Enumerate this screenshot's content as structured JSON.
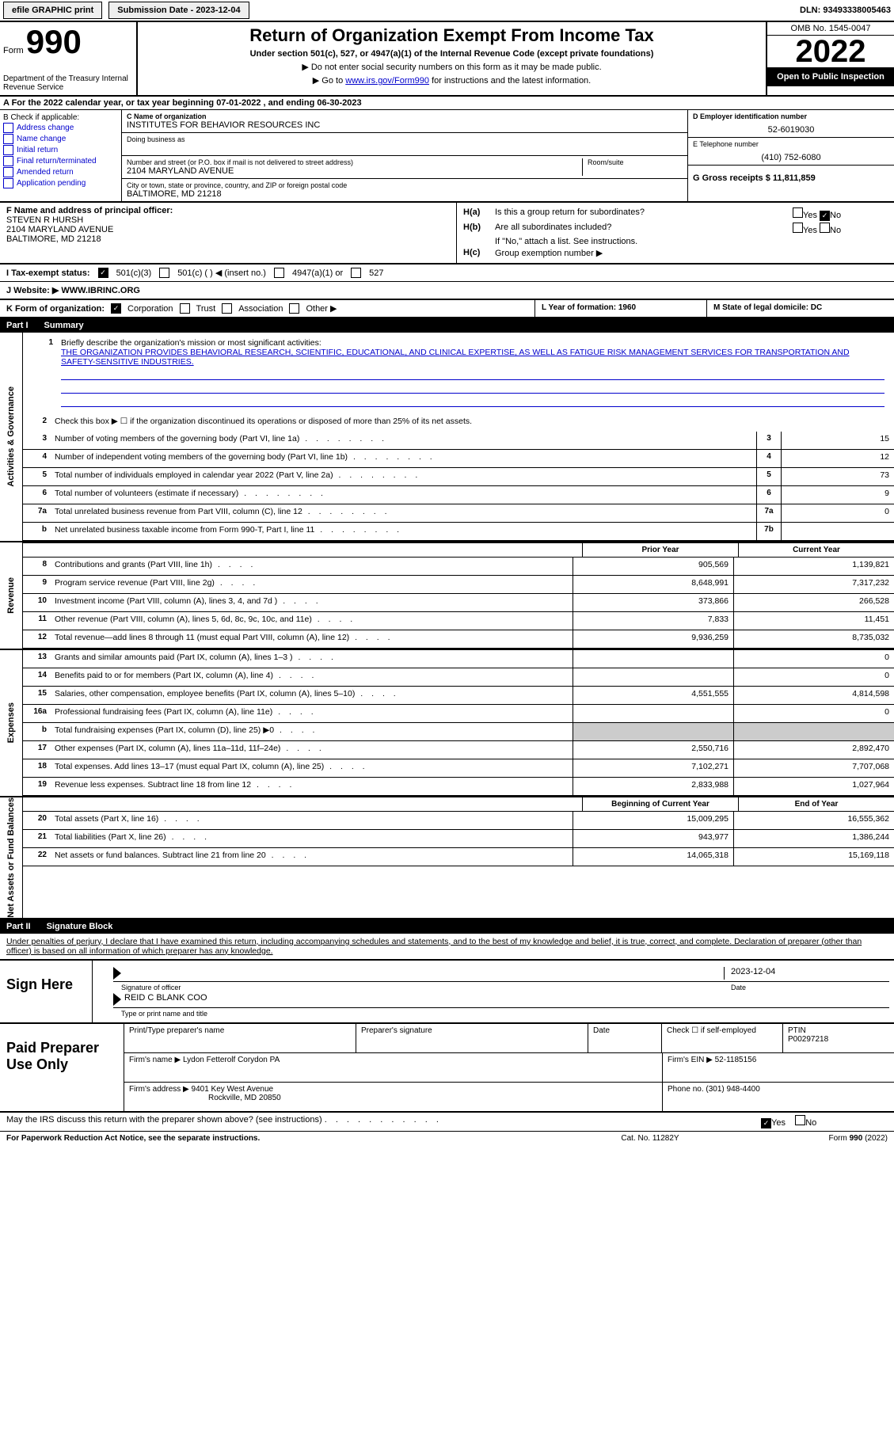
{
  "top_bar": {
    "efile_label": "efile GRAPHIC print",
    "submission_date_label": "Submission Date - 2023-12-04",
    "dln_label": "DLN: 93493338005463"
  },
  "header": {
    "form_label": "Form",
    "form_number": "990",
    "dept": "Department of the Treasury\nInternal Revenue Service",
    "title": "Return of Organization Exempt From Income Tax",
    "subtitle": "Under section 501(c), 527, or 4947(a)(1) of the Internal Revenue Code (except private foundations)",
    "note1": "▶ Do not enter social security numbers on this form as it may be made public.",
    "note2_pre": "▶ Go to ",
    "note2_link": "www.irs.gov/Form990",
    "note2_post": " for instructions and the latest information.",
    "omb": "OMB No. 1545-0047",
    "year": "2022",
    "open_public": "Open to Public Inspection"
  },
  "section_a": {
    "text": "A For the 2022 calendar year, or tax year beginning 07-01-2022   , and ending 06-30-2023"
  },
  "col_b": {
    "header": "B Check if applicable:",
    "items": [
      "Address change",
      "Name change",
      "Initial return",
      "Final return/terminated",
      "Amended return",
      "Application pending"
    ]
  },
  "col_c": {
    "name_label": "C Name of organization",
    "name": "INSTITUTES FOR BEHAVIOR RESOURCES INC",
    "dba_label": "Doing business as",
    "addr_label": "Number and street (or P.O. box if mail is not delivered to street address)",
    "room_label": "Room/suite",
    "addr": "2104 MARYLAND AVENUE",
    "city_label": "City or town, state or province, country, and ZIP or foreign postal code",
    "city": "BALTIMORE, MD  21218"
  },
  "col_d": {
    "d_label": "D Employer identification number",
    "d_val": "52-6019030",
    "e_label": "E Telephone number",
    "e_val": "(410) 752-6080",
    "g_label": "G Gross receipts $ 11,811,859"
  },
  "section_f": {
    "label": "F Name and address of principal officer:",
    "name": "STEVEN R HURSH",
    "addr1": "2104 MARYLAND AVENUE",
    "addr2": "BALTIMORE, MD  21218"
  },
  "section_h": {
    "ha_label": "H(a)",
    "ha_text": "Is this a group return for subordinates?",
    "hb_label": "H(b)",
    "hb_text": "Are all subordinates included?",
    "hb_note": "If \"No,\" attach a list. See instructions.",
    "hc_label": "H(c)",
    "hc_text": "Group exemption number ▶",
    "yes": "Yes",
    "no": "No"
  },
  "section_i": {
    "label": "I   Tax-exempt status:",
    "opts": [
      "501(c)(3)",
      "501(c) (  ) ◀ (insert no.)",
      "4947(a)(1) or",
      "527"
    ]
  },
  "section_j": {
    "label": "J   Website: ▶",
    "val": "WWW.IBRINC.ORG"
  },
  "section_k": {
    "label": "K Form of organization:",
    "opts": [
      "Corporation",
      "Trust",
      "Association",
      "Other ▶"
    ]
  },
  "section_l": {
    "label": "L Year of formation: 1960"
  },
  "section_m": {
    "label": "M State of legal domicile: DC"
  },
  "part1": {
    "header_num": "Part I",
    "header_title": "Summary",
    "vert_labels": [
      "Activities & Governance",
      "Revenue",
      "Expenses",
      "Net Assets or Fund Balances"
    ],
    "line1_label": "Briefly describe the organization's mission or most significant activities:",
    "line1_text": "THE ORGANIZATION PROVIDES BEHAVIORAL RESEARCH, SCIENTIFIC, EDUCATIONAL, AND CLINICAL EXPERTISE, AS WELL AS FATIGUE RISK MANAGEMENT SERVICES FOR TRANSPORTATION AND SAFETY-SENSITIVE INDUSTRIES.",
    "line2": "Check this box ▶ ☐ if the organization discontinued its operations or disposed of more than 25% of its net assets.",
    "lines_single": [
      {
        "n": "3",
        "t": "Number of voting members of the governing body (Part VI, line 1a)",
        "box": "3",
        "v": "15"
      },
      {
        "n": "4",
        "t": "Number of independent voting members of the governing body (Part VI, line 1b)",
        "box": "4",
        "v": "12"
      },
      {
        "n": "5",
        "t": "Total number of individuals employed in calendar year 2022 (Part V, line 2a)",
        "box": "5",
        "v": "73"
      },
      {
        "n": "6",
        "t": "Total number of volunteers (estimate if necessary)",
        "box": "6",
        "v": "9"
      },
      {
        "n": "7a",
        "t": "Total unrelated business revenue from Part VIII, column (C), line 12",
        "box": "7a",
        "v": "0"
      },
      {
        "n": "b",
        "t": "Net unrelated business taxable income from Form 990-T, Part I, line 11",
        "box": "7b",
        "v": ""
      }
    ],
    "col_headers": {
      "prior": "Prior Year",
      "current": "Current Year"
    },
    "lines_rev": [
      {
        "n": "8",
        "t": "Contributions and grants (Part VIII, line 1h)",
        "p": "905,569",
        "c": "1,139,821"
      },
      {
        "n": "9",
        "t": "Program service revenue (Part VIII, line 2g)",
        "p": "8,648,991",
        "c": "7,317,232"
      },
      {
        "n": "10",
        "t": "Investment income (Part VIII, column (A), lines 3, 4, and 7d )",
        "p": "373,866",
        "c": "266,528"
      },
      {
        "n": "11",
        "t": "Other revenue (Part VIII, column (A), lines 5, 6d, 8c, 9c, 10c, and 11e)",
        "p": "7,833",
        "c": "11,451"
      },
      {
        "n": "12",
        "t": "Total revenue—add lines 8 through 11 (must equal Part VIII, column (A), line 12)",
        "p": "9,936,259",
        "c": "8,735,032"
      }
    ],
    "lines_exp": [
      {
        "n": "13",
        "t": "Grants and similar amounts paid (Part IX, column (A), lines 1–3 )",
        "p": "",
        "c": "0"
      },
      {
        "n": "14",
        "t": "Benefits paid to or for members (Part IX, column (A), line 4)",
        "p": "",
        "c": "0"
      },
      {
        "n": "15",
        "t": "Salaries, other compensation, employee benefits (Part IX, column (A), lines 5–10)",
        "p": "4,551,555",
        "c": "4,814,598"
      },
      {
        "n": "16a",
        "t": "Professional fundraising fees (Part IX, column (A), line 11e)",
        "p": "",
        "c": "0"
      },
      {
        "n": "b",
        "t": "Total fundraising expenses (Part IX, column (D), line 25) ▶0",
        "p": "shaded",
        "c": "shaded"
      },
      {
        "n": "17",
        "t": "Other expenses (Part IX, column (A), lines 11a–11d, 11f–24e)",
        "p": "2,550,716",
        "c": "2,892,470"
      },
      {
        "n": "18",
        "t": "Total expenses. Add lines 13–17 (must equal Part IX, column (A), line 25)",
        "p": "7,102,271",
        "c": "7,707,068"
      },
      {
        "n": "19",
        "t": "Revenue less expenses. Subtract line 18 from line 12",
        "p": "2,833,988",
        "c": "1,027,964"
      }
    ],
    "col_headers2": {
      "begin": "Beginning of Current Year",
      "end": "End of Year"
    },
    "lines_na": [
      {
        "n": "20",
        "t": "Total assets (Part X, line 16)",
        "p": "15,009,295",
        "c": "16,555,362"
      },
      {
        "n": "21",
        "t": "Total liabilities (Part X, line 26)",
        "p": "943,977",
        "c": "1,386,244"
      },
      {
        "n": "22",
        "t": "Net assets or fund balances. Subtract line 21 from line 20",
        "p": "14,065,318",
        "c": "15,169,118"
      }
    ]
  },
  "part2": {
    "header_num": "Part II",
    "header_title": "Signature Block",
    "penalties": "Under penalties of perjury, I declare that I have examined this return, including accompanying schedules and statements, and to the best of my knowledge and belief, it is true, correct, and complete. Declaration of preparer (other than officer) is based on all information of which preparer has any knowledge.",
    "sign_here": "Sign Here",
    "sig_officer": "Signature of officer",
    "sig_date": "2023-12-04",
    "date_label": "Date",
    "officer_name": "REID C BLANK  COO",
    "type_name": "Type or print name and title",
    "paid_label": "Paid Preparer Use Only",
    "prep_name_label": "Print/Type preparer's name",
    "prep_sig_label": "Preparer's signature",
    "prep_date_label": "Date",
    "check_if": "Check ☐ if self-employed",
    "ptin_label": "PTIN",
    "ptin": "P00297218",
    "firm_name_label": "Firm's name     ▶",
    "firm_name": "Lydon Fetterolf Corydon PA",
    "firm_ein_label": "Firm's EIN ▶",
    "firm_ein": "52-1185156",
    "firm_addr_label": "Firm's address ▶",
    "firm_addr": "9401 Key West Avenue",
    "firm_city": "Rockville, MD  20850",
    "phone_label": "Phone no.",
    "phone": "(301) 948-4400"
  },
  "discuss": {
    "text": "May the IRS discuss this return with the preparer shown above? (see instructions)",
    "yes": "Yes",
    "no": "No"
  },
  "footer": {
    "left": "For Paperwork Reduction Act Notice, see the separate instructions.",
    "center": "Cat. No. 11282Y",
    "right": "Form 990 (2022)"
  },
  "colors": {
    "link": "#0000cc",
    "shaded": "#cccccc"
  }
}
